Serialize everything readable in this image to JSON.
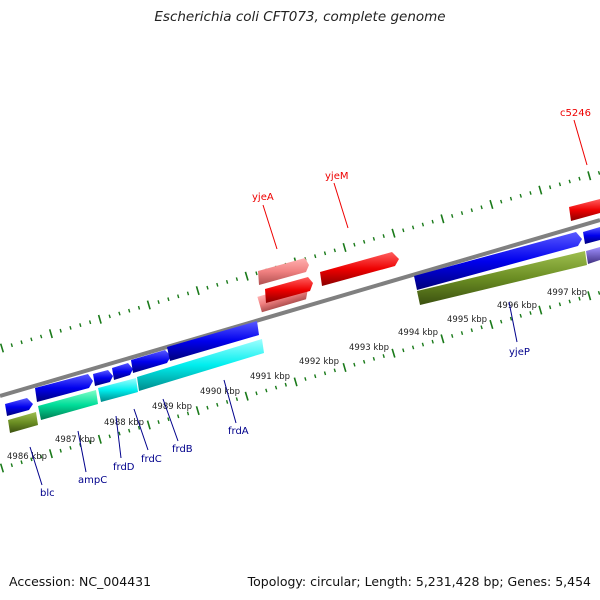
{
  "title": "Escherichia coli CFT073, complete genome",
  "footer": {
    "accession": "Accession: NC_004431",
    "summary": "Topology: circular; Length: 5,231,428 bp; Genes: 5,454"
  },
  "kbp_ticks": [
    "4986 kbp",
    "4987 kbp",
    "4988 kbp",
    "4989 kbp",
    "4990 kbp",
    "4991 kbp",
    "4992 kbp",
    "4993 kbp",
    "4994 kbp",
    "4995 kbp",
    "4996 kbp",
    "4997 kbp"
  ],
  "genes": [
    {
      "name": "blc",
      "color": "#00008b"
    },
    {
      "name": "ampC",
      "color": "#00008b"
    },
    {
      "name": "frdD",
      "color": "#00008b"
    },
    {
      "name": "frdC",
      "color": "#00008b"
    },
    {
      "name": "frdB",
      "color": "#00008b"
    },
    {
      "name": "frdA",
      "color": "#00008b"
    },
    {
      "name": "yjeP",
      "color": "#00008b"
    },
    {
      "name": "yjeA",
      "color": "#ee0000"
    },
    {
      "name": "yjeM",
      "color": "#ee0000"
    },
    {
      "name": "c5246",
      "color": "#ee0000"
    }
  ],
  "colors": {
    "backbone": "#808080",
    "tick": "#1a7a1a",
    "forward_cds": "#0000ee",
    "reverse_cds": "#ee0000",
    "light_reverse": "#f08080",
    "cyan_cds": "#00e5ee",
    "green_cds": "#00cc88",
    "olive_cds": "#6b8e23",
    "purple_cds": "#7060c0"
  }
}
